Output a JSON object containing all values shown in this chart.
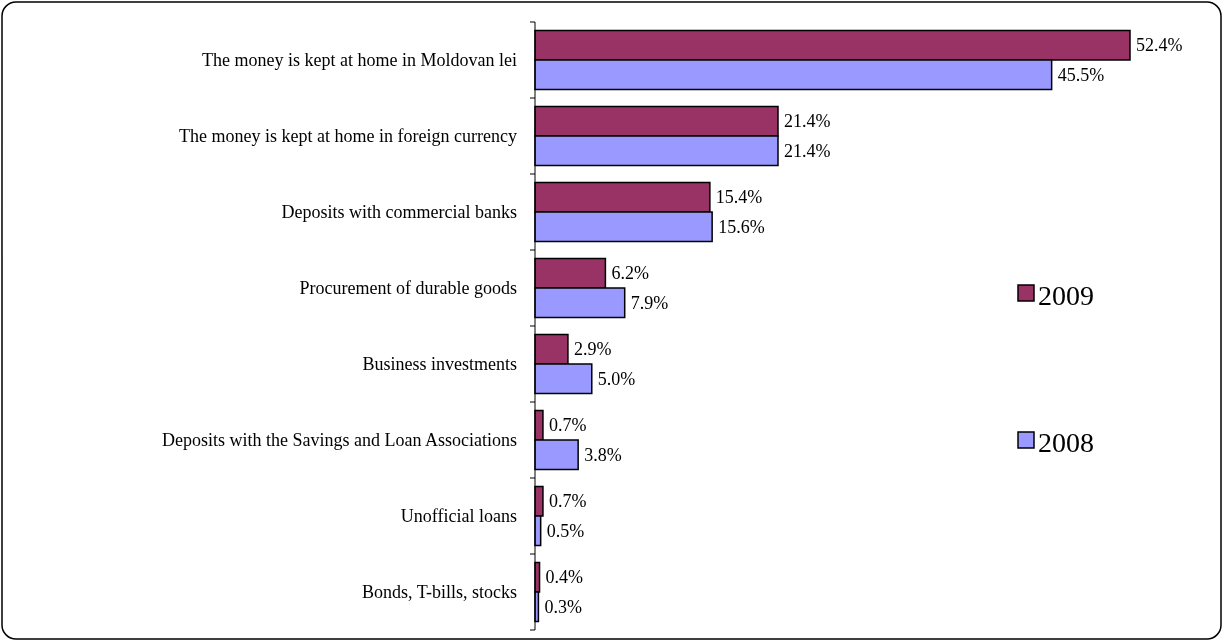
{
  "chart_data": {
    "type": "bar",
    "orientation": "horizontal",
    "categories": [
      "The money is kept at home in Moldovan lei",
      "The money is kept at home in foreign currency",
      "Deposits with commercial banks",
      "Procurement of durable goods",
      "Business investments",
      "Deposits with the Savings and Loan Associations",
      "Unofficial loans",
      "Bonds, T-bills, stocks"
    ],
    "series": [
      {
        "name": "2009",
        "color": "#993366",
        "values": [
          52.4,
          21.4,
          15.4,
          6.2,
          2.9,
          0.7,
          0.7,
          0.4
        ],
        "value_labels": [
          "52.4%",
          "21.4%",
          "15.4%",
          "6.2%",
          "2.9%",
          "0.7%",
          "0.7%",
          "0.4%"
        ]
      },
      {
        "name": "2008",
        "color": "#9999ff",
        "values": [
          45.5,
          21.4,
          15.6,
          7.9,
          5.0,
          3.8,
          0.5,
          0.3
        ],
        "value_labels": [
          "45.5%",
          "21.4%",
          "15.6%",
          "7.9%",
          "5.0%",
          "3.8%",
          "0.5%",
          "0.3%"
        ]
      }
    ],
    "legend": "right"
  }
}
